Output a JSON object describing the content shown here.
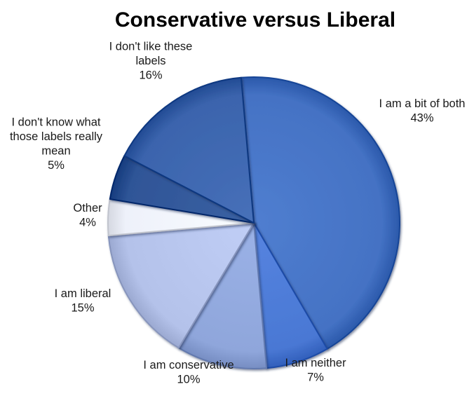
{
  "chart_data": {
    "type": "pie",
    "title": "Conservative versus Liberal",
    "slices": [
      {
        "label": [
          "I am a bit of both"
        ],
        "value": 43,
        "value_label": "43%",
        "color": "#4472C4"
      },
      {
        "label": [
          "I am neither"
        ],
        "value": 7,
        "value_label": "7%",
        "color": "#4A78D4"
      },
      {
        "label": [
          "I am conservative"
        ],
        "value": 10,
        "value_label": "10%",
        "color": "#8FA6DB"
      },
      {
        "label": [
          "I am liberal"
        ],
        "value": 15,
        "value_label": "15%",
        "color": "#B4C2EA"
      },
      {
        "label": [
          "Other"
        ],
        "value": 4,
        "value_label": "4%",
        "color": "#EEF1FA"
      },
      {
        "label": [
          "I don't know what",
          "those labels really",
          "mean"
        ],
        "value": 5,
        "value_label": "5%",
        "color": "#2F5597"
      },
      {
        "label": [
          "I don't like these",
          "labels"
        ],
        "value": 16,
        "value_label": "16%",
        "color": "#3B64AD"
      }
    ],
    "legend": "none"
  }
}
